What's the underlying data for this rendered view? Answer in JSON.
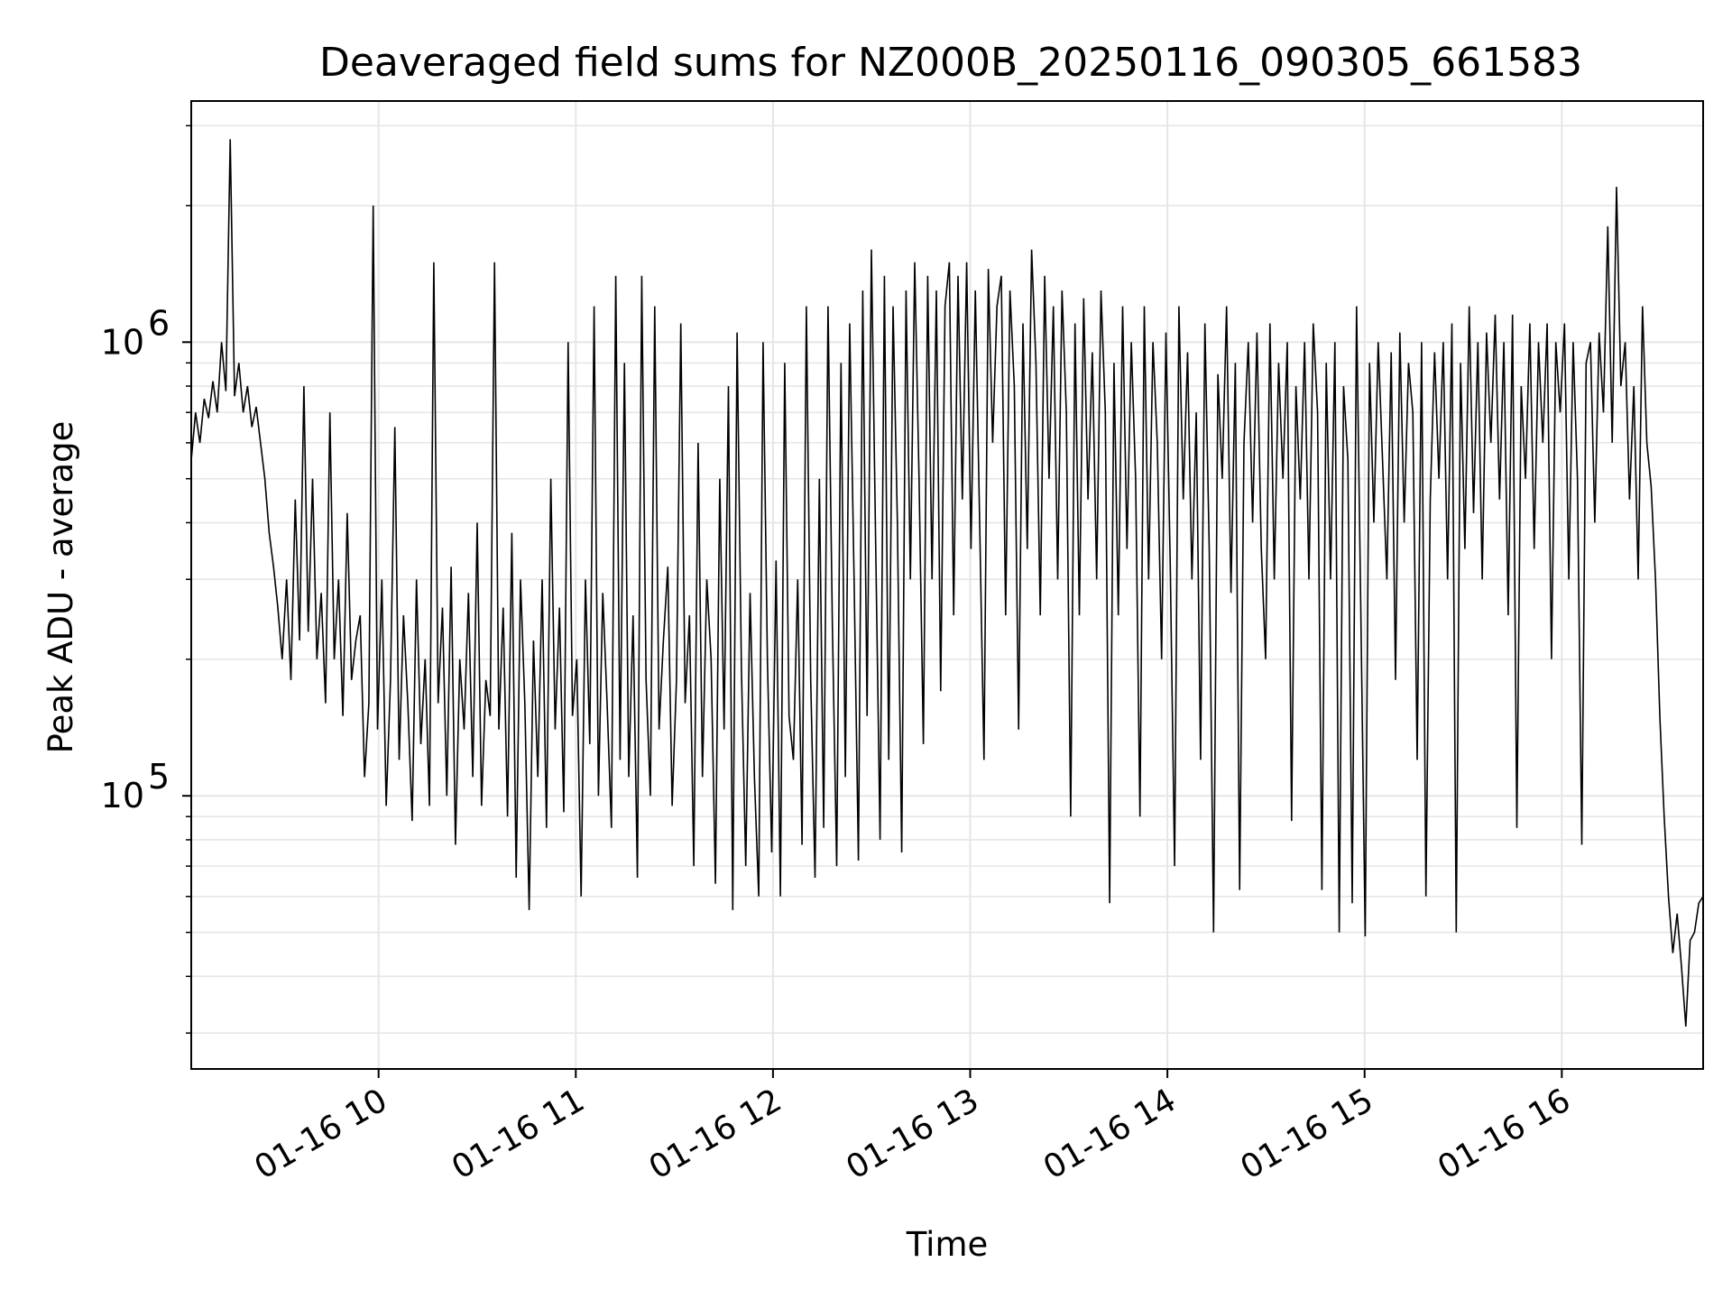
{
  "chart_data": {
    "type": "line",
    "title": "Deaveraged field sums for NZ000B_20250116_090305_661583",
    "xlabel": "Time",
    "ylabel": "Peak ADU - average",
    "x_range": [
      "2025-01-16 09:03",
      "2025-01-16 16:43"
    ],
    "ylim": [
      25000,
      3400000
    ],
    "y_scale": "log",
    "grid": true,
    "line_color": "#000000",
    "grid_color": "#e6e6e6",
    "x_ticks": [
      {
        "value": "2025-01-16 10:00",
        "label": "01-16 10"
      },
      {
        "value": "2025-01-16 11:00",
        "label": "01-16 11"
      },
      {
        "value": "2025-01-16 12:00",
        "label": "01-16 12"
      },
      {
        "value": "2025-01-16 13:00",
        "label": "01-16 13"
      },
      {
        "value": "2025-01-16 14:00",
        "label": "01-16 14"
      },
      {
        "value": "2025-01-16 15:00",
        "label": "01-16 15"
      },
      {
        "value": "2025-01-16 16:00",
        "label": "01-16 16"
      }
    ],
    "y_ticks": [
      {
        "value": 100000,
        "base": "10",
        "exp": "5"
      },
      {
        "value": 1000000,
        "base": "10",
        "exp": "6"
      }
    ],
    "series": [
      {
        "x_start": "2025-01-16 09:03",
        "x_end": "2025-01-16 16:43",
        "values": [
          550000,
          700000,
          600000,
          750000,
          680000,
          820000,
          700000,
          1000000,
          780000,
          2800000,
          760000,
          900000,
          700000,
          800000,
          650000,
          720000,
          600000,
          500000,
          380000,
          320000,
          260000,
          200000,
          300000,
          180000,
          450000,
          220000,
          800000,
          230000,
          500000,
          200000,
          280000,
          160000,
          700000,
          200000,
          300000,
          150000,
          420000,
          180000,
          220000,
          250000,
          110000,
          160000,
          2000000,
          140000,
          300000,
          95000,
          180000,
          650000,
          120000,
          250000,
          160000,
          88000,
          300000,
          130000,
          200000,
          95000,
          1500000,
          160000,
          260000,
          100000,
          320000,
          78000,
          200000,
          140000,
          280000,
          110000,
          400000,
          95000,
          180000,
          150000,
          1500000,
          140000,
          260000,
          90000,
          380000,
          66000,
          300000,
          160000,
          56000,
          220000,
          110000,
          300000,
          85000,
          500000,
          140000,
          260000,
          92000,
          1000000,
          150000,
          200000,
          60000,
          300000,
          130000,
          1200000,
          100000,
          280000,
          160000,
          85000,
          1400000,
          120000,
          900000,
          110000,
          250000,
          66000,
          1400000,
          180000,
          100000,
          1200000,
          140000,
          220000,
          320000,
          95000,
          180000,
          1100000,
          160000,
          250000,
          70000,
          600000,
          110000,
          300000,
          200000,
          64000,
          500000,
          140000,
          800000,
          56000,
          1050000,
          190000,
          70000,
          280000,
          110000,
          60000,
          1000000,
          200000,
          75000,
          330000,
          60000,
          900000,
          150000,
          120000,
          300000,
          78000,
          1200000,
          180000,
          66000,
          500000,
          85000,
          1200000,
          240000,
          70000,
          900000,
          110000,
          1100000,
          300000,
          72000,
          1300000,
          150000,
          1600000,
          350000,
          80000,
          1400000,
          120000,
          1200000,
          400000,
          75000,
          1300000,
          300000,
          1500000,
          500000,
          130000,
          1400000,
          300000,
          1300000,
          170000,
          1200000,
          1500000,
          250000,
          1400000,
          450000,
          1500000,
          350000,
          1300000,
          400000,
          120000,
          1450000,
          600000,
          1200000,
          1400000,
          250000,
          1300000,
          800000,
          140000,
          1100000,
          350000,
          1600000,
          900000,
          250000,
          1400000,
          500000,
          1200000,
          300000,
          1300000,
          700000,
          90000,
          1100000,
          250000,
          1250000,
          450000,
          950000,
          300000,
          1300000,
          700000,
          58000,
          900000,
          250000,
          1200000,
          350000,
          1000000,
          500000,
          90000,
          1200000,
          300000,
          1000000,
          600000,
          200000,
          1050000,
          320000,
          70000,
          1200000,
          450000,
          950000,
          300000,
          700000,
          120000,
          1100000,
          350000,
          50000,
          850000,
          500000,
          1200000,
          280000,
          900000,
          62000,
          600000,
          1000000,
          400000,
          1050000,
          350000,
          200000,
          1100000,
          300000,
          900000,
          500000,
          1000000,
          88000,
          800000,
          450000,
          1000000,
          300000,
          1100000,
          700000,
          62000,
          900000,
          300000,
          1000000,
          50000,
          800000,
          550000,
          58000,
          1200000,
          250000,
          49000,
          900000,
          400000,
          1000000,
          550000,
          300000,
          950000,
          180000,
          1050000,
          400000,
          900000,
          700000,
          120000,
          1000000,
          60000,
          450000,
          950000,
          500000,
          1000000,
          300000,
          1100000,
          50000,
          900000,
          350000,
          1200000,
          420000,
          1000000,
          300000,
          1050000,
          600000,
          1150000,
          450000,
          1000000,
          250000,
          1150000,
          85000,
          800000,
          500000,
          1100000,
          350000,
          1000000,
          600000,
          1100000,
          200000,
          1000000,
          700000,
          1100000,
          300000,
          1000000,
          500000,
          78000,
          900000,
          1000000,
          400000,
          1050000,
          700000,
          1800000,
          600000,
          2200000,
          800000,
          1000000,
          450000,
          800000,
          300000,
          1200000,
          600000,
          480000,
          300000,
          150000,
          90000,
          60000,
          45000,
          55000,
          42000,
          31000,
          48000,
          50000,
          58000,
          60000
        ]
      }
    ]
  }
}
